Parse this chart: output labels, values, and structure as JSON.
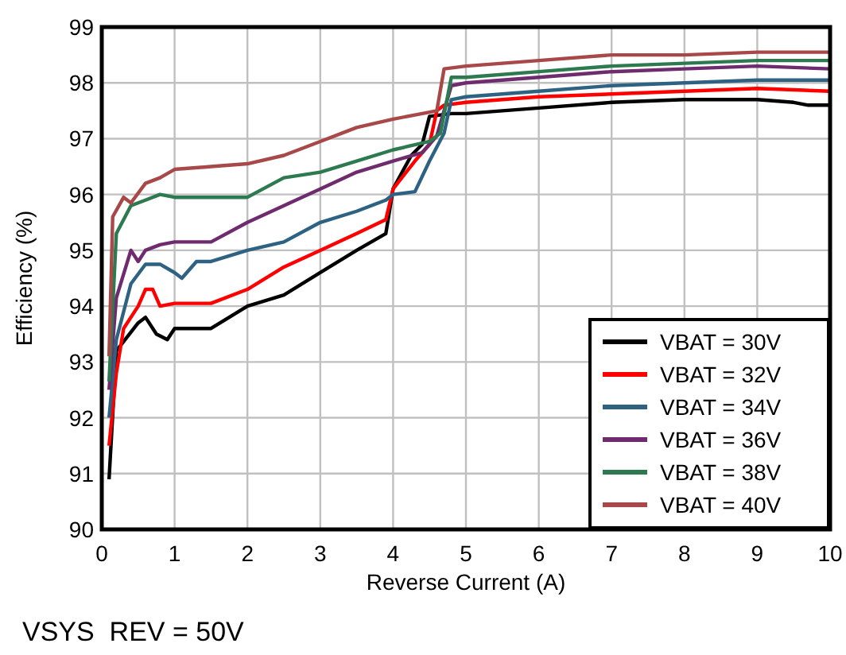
{
  "chart_data": {
    "type": "line",
    "xlabel": "Reverse Current (A)",
    "ylabel": "Efficiency (%)",
    "xlim": [
      0,
      10
    ],
    "xticks": [
      0,
      1,
      2,
      3,
      4,
      5,
      6,
      7,
      8,
      9,
      10
    ],
    "ylim": [
      90,
      99
    ],
    "yticks": [
      90,
      91,
      92,
      93,
      94,
      95,
      96,
      97,
      98,
      99
    ],
    "grid": true,
    "legend": "bottom right",
    "line_style": "solid",
    "marker": "none",
    "annotations": [
      "VSYS  REV = 50V"
    ],
    "series": [
      {
        "name": "VBAT = 30V",
        "color": "#000000",
        "x": [
          0.1,
          0.2,
          0.5,
          0.6,
          0.75,
          0.9,
          1,
          1.5,
          2,
          2.5,
          3,
          3.5,
          3.9,
          4,
          4.25,
          4.4,
          4.5,
          4.8,
          5,
          6,
          7,
          8,
          9,
          9.5,
          9.7,
          10
        ],
        "values": [
          90.9,
          93.2,
          93.7,
          93.8,
          93.5,
          93.4,
          93.6,
          93.6,
          94,
          94.2,
          94.6,
          95,
          95.3,
          96.1,
          96.7,
          96.9,
          97.4,
          97.45,
          97.45,
          97.55,
          97.65,
          97.7,
          97.7,
          97.65,
          97.6,
          97.6
        ]
      },
      {
        "name": "VBAT = 32V",
        "color": "#ff0000",
        "x": [
          0.1,
          0.2,
          0.3,
          0.5,
          0.6,
          0.7,
          0.8,
          1,
          1.5,
          2,
          2.5,
          3,
          3.5,
          3.9,
          4,
          4.3,
          4.5,
          4.6,
          4.7,
          5,
          6,
          7,
          8,
          9,
          10
        ],
        "values": [
          91.5,
          92.8,
          93.6,
          94,
          94.3,
          94.3,
          94,
          94.05,
          94.05,
          94.3,
          94.7,
          95,
          95.3,
          95.55,
          96.1,
          96.6,
          96.9,
          97.5,
          97.6,
          97.65,
          97.75,
          97.8,
          97.85,
          97.9,
          97.85
        ]
      },
      {
        "name": "VBAT = 34V",
        "color": "#2e6283",
        "x": [
          0.1,
          0.2,
          0.4,
          0.6,
          0.8,
          1,
          1.1,
          1.3,
          1.5,
          2,
          2.5,
          3,
          3.5,
          3.9,
          4,
          4.3,
          4.5,
          4.7,
          4.8,
          5,
          6,
          7,
          8,
          9,
          10
        ],
        "values": [
          92,
          93.4,
          94.4,
          94.75,
          94.75,
          94.6,
          94.5,
          94.8,
          94.8,
          95,
          95.15,
          95.5,
          95.7,
          95.9,
          96,
          96.05,
          96.6,
          97.1,
          97.7,
          97.75,
          97.85,
          97.95,
          98,
          98.05,
          98.05
        ]
      },
      {
        "name": "VBAT = 36V",
        "color": "#6e2c6e",
        "x": [
          0.1,
          0.2,
          0.4,
          0.5,
          0.6,
          0.8,
          1,
          1.5,
          2,
          2.5,
          3,
          3.5,
          4,
          4.4,
          4.6,
          4.8,
          5,
          6,
          7,
          8,
          9,
          10
        ],
        "values": [
          92.5,
          94.15,
          95,
          94.8,
          95,
          95.1,
          95.15,
          95.15,
          95.5,
          95.8,
          96.1,
          96.4,
          96.6,
          96.75,
          97.05,
          97.95,
          98,
          98.1,
          98.2,
          98.25,
          98.3,
          98.25
        ]
      },
      {
        "name": "VBAT = 38V",
        "color": "#2e7a50",
        "x": [
          0.1,
          0.2,
          0.4,
          0.6,
          0.8,
          1,
          1.5,
          2,
          2.5,
          3,
          3.5,
          4,
          4.5,
          4.65,
          4.8,
          5,
          6,
          7,
          8,
          9,
          10
        ],
        "values": [
          92.65,
          95.3,
          95.8,
          95.9,
          96,
          95.95,
          95.95,
          95.95,
          96.3,
          96.4,
          96.6,
          96.8,
          96.95,
          97.1,
          98.1,
          98.1,
          98.2,
          98.3,
          98.35,
          98.4,
          98.4
        ]
      },
      {
        "name": "VBAT = 40V",
        "color": "#a84848",
        "x": [
          0.1,
          0.15,
          0.3,
          0.4,
          0.6,
          0.8,
          1,
          1.5,
          2,
          2.5,
          3,
          3.5,
          4,
          4.4,
          4.6,
          4.7,
          5,
          6,
          7,
          8,
          9,
          10
        ],
        "values": [
          93.1,
          95.6,
          95.95,
          95.85,
          96.2,
          96.3,
          96.45,
          96.5,
          96.55,
          96.7,
          96.95,
          97.2,
          97.35,
          97.45,
          97.5,
          98.25,
          98.3,
          98.4,
          98.5,
          98.5,
          98.55,
          98.55
        ]
      }
    ]
  }
}
